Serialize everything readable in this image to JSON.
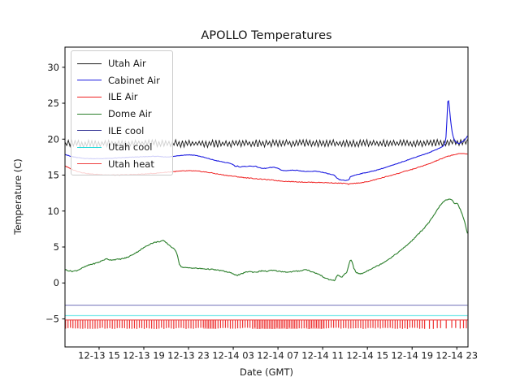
{
  "figure": {
    "title": "APOLLO Temperatures",
    "xlabel": "Date (GMT)",
    "ylabel": "Temperature (C)"
  },
  "chart_data": {
    "type": "line",
    "title": "APOLLO Temperatures",
    "xlabel": "Date (GMT)",
    "ylabel": "Temperature (C)",
    "x_unit": "hours since 12-13 00:00 GMT",
    "xlim": [
      11.95,
      48.0
    ],
    "ylim": [
      -8.9,
      32.8
    ],
    "grid": false,
    "legend_position": "upper left",
    "x_ticks": [
      {
        "t": 15,
        "label": "12-13 15"
      },
      {
        "t": 19,
        "label": "12-13 19"
      },
      {
        "t": 23,
        "label": "12-13 23"
      },
      {
        "t": 27,
        "label": "12-14 03"
      },
      {
        "t": 31,
        "label": "12-14 07"
      },
      {
        "t": 35,
        "label": "12-14 11"
      },
      {
        "t": 39,
        "label": "12-14 15"
      },
      {
        "t": 43,
        "label": "12-14 19"
      },
      {
        "t": 47,
        "label": "12-14 23"
      }
    ],
    "y_ticks": [
      {
        "v": 30,
        "label": "30"
      },
      {
        "v": 25,
        "label": "25"
      },
      {
        "v": 20,
        "label": "20"
      },
      {
        "v": 15,
        "label": "15"
      },
      {
        "v": 10,
        "label": "10"
      },
      {
        "v": 5,
        "label": "5"
      },
      {
        "v": 0,
        "label": "0"
      },
      {
        "v": -5,
        "label": "−5"
      }
    ],
    "legend": [
      {
        "label": "Utah Air",
        "color": "#1a1a1a"
      },
      {
        "label": "Cabinet Air",
        "color": "#1b1be0"
      },
      {
        "label": "ILE Air",
        "color": "#ef2020"
      },
      {
        "label": "Dome Air",
        "color": "#2a7e2a"
      },
      {
        "label": "ILE cool",
        "color": "#3d3d99"
      },
      {
        "label": "Utah cool",
        "color": "#25dcdc"
      },
      {
        "label": "Utah heat",
        "color": "#ef4040"
      }
    ],
    "series": [
      {
        "name": "Utah Air",
        "style": "sawtooth",
        "color": "#1a1a1a",
        "width": 0.9,
        "osc_amp": 0.36,
        "osc_period": 0.3,
        "base": [
          [
            11.95,
            19.35
          ],
          [
            16,
            19.4
          ],
          [
            20,
            19.45
          ],
          [
            24,
            19.35
          ],
          [
            28,
            19.4
          ],
          [
            32,
            19.45
          ],
          [
            36,
            19.4
          ],
          [
            40,
            19.45
          ],
          [
            44,
            19.4
          ],
          [
            46,
            19.5
          ],
          [
            47.5,
            19.6
          ],
          [
            48,
            19.75
          ]
        ]
      },
      {
        "name": "Cabinet Air",
        "style": "line",
        "color": "#1b1be0",
        "width": 1.1,
        "jitter": 0.035,
        "points": [
          [
            11.95,
            17.9
          ],
          [
            12.4,
            17.62
          ],
          [
            13,
            17.45
          ],
          [
            13.5,
            17.35
          ],
          [
            14,
            17.3
          ],
          [
            15,
            17.28
          ],
          [
            16,
            17.33
          ],
          [
            17,
            17.42
          ],
          [
            18,
            17.5
          ],
          [
            19,
            17.55
          ],
          [
            20,
            17.62
          ],
          [
            20.6,
            17.55
          ],
          [
            21,
            17.52
          ],
          [
            21.6,
            17.58
          ],
          [
            22,
            17.68
          ],
          [
            22.5,
            17.78
          ],
          [
            23,
            17.82
          ],
          [
            23.5,
            17.78
          ],
          [
            24,
            17.62
          ],
          [
            24.5,
            17.42
          ],
          [
            25,
            17.2
          ],
          [
            25.5,
            17.0
          ],
          [
            26,
            16.85
          ],
          [
            26.4,
            16.72
          ],
          [
            26.8,
            16.6
          ],
          [
            27,
            16.45
          ],
          [
            27.2,
            16.2
          ],
          [
            27.4,
            16.28
          ],
          [
            27.6,
            16.1
          ],
          [
            27.8,
            16.18
          ],
          [
            28.2,
            16.22
          ],
          [
            28.6,
            16.25
          ],
          [
            29,
            16.22
          ],
          [
            29.3,
            16.05
          ],
          [
            29.6,
            15.92
          ],
          [
            30,
            15.95
          ],
          [
            30.3,
            16.05
          ],
          [
            30.7,
            16.08
          ],
          [
            31,
            15.95
          ],
          [
            31.3,
            15.68
          ],
          [
            31.6,
            15.62
          ],
          [
            32,
            15.65
          ],
          [
            32.4,
            15.7
          ],
          [
            32.8,
            15.65
          ],
          [
            33.2,
            15.55
          ],
          [
            33.6,
            15.48
          ],
          [
            34,
            15.5
          ],
          [
            34.4,
            15.55
          ],
          [
            34.8,
            15.45
          ],
          [
            35.2,
            15.3
          ],
          [
            35.6,
            15.15
          ],
          [
            36,
            15.0
          ],
          [
            36.3,
            14.55
          ],
          [
            36.5,
            14.35
          ],
          [
            36.8,
            14.3
          ],
          [
            37.1,
            14.25
          ],
          [
            37.35,
            14.3
          ],
          [
            37.45,
            14.75
          ],
          [
            37.7,
            14.9
          ],
          [
            38,
            15.05
          ],
          [
            38.4,
            15.2
          ],
          [
            38.8,
            15.32
          ],
          [
            39.2,
            15.45
          ],
          [
            39.6,
            15.6
          ],
          [
            40,
            15.78
          ],
          [
            40.5,
            16.0
          ],
          [
            41,
            16.25
          ],
          [
            41.5,
            16.5
          ],
          [
            42,
            16.78
          ],
          [
            42.5,
            17.05
          ],
          [
            43,
            17.32
          ],
          [
            43.5,
            17.6
          ],
          [
            44,
            17.85
          ],
          [
            44.5,
            18.1
          ],
          [
            45,
            18.45
          ],
          [
            45.5,
            18.8
          ],
          [
            45.8,
            19.05
          ],
          [
            46.0,
            19.6
          ],
          [
            46.08,
            21.5
          ],
          [
            46.18,
            25.0
          ],
          [
            46.22,
            25.8
          ],
          [
            46.3,
            25.0
          ],
          [
            46.45,
            22.5
          ],
          [
            46.6,
            20.8
          ],
          [
            46.75,
            20.0
          ],
          [
            46.9,
            19.6
          ],
          [
            47.1,
            19.42
          ],
          [
            47.3,
            19.45
          ],
          [
            47.5,
            19.65
          ],
          [
            47.75,
            19.95
          ],
          [
            48,
            20.55
          ]
        ]
      },
      {
        "name": "ILE Air",
        "style": "line",
        "color": "#ef2020",
        "width": 1.0,
        "jitter": 0.05,
        "points": [
          [
            11.95,
            16.3
          ],
          [
            12.4,
            15.9
          ],
          [
            13,
            15.55
          ],
          [
            13.5,
            15.35
          ],
          [
            14,
            15.2
          ],
          [
            14.5,
            15.12
          ],
          [
            15,
            15.08
          ],
          [
            16,
            15.02
          ],
          [
            17,
            15.02
          ],
          [
            18,
            15.08
          ],
          [
            19,
            15.15
          ],
          [
            20,
            15.25
          ],
          [
            21,
            15.4
          ],
          [
            22,
            15.52
          ],
          [
            22.6,
            15.58
          ],
          [
            23.2,
            15.6
          ],
          [
            23.8,
            15.55
          ],
          [
            24.4,
            15.45
          ],
          [
            25,
            15.32
          ],
          [
            25.6,
            15.15
          ],
          [
            26.2,
            15.0
          ],
          [
            26.8,
            14.88
          ],
          [
            27.4,
            14.76
          ],
          [
            28,
            14.65
          ],
          [
            28.6,
            14.56
          ],
          [
            29.2,
            14.48
          ],
          [
            29.8,
            14.4
          ],
          [
            30.4,
            14.32
          ],
          [
            31,
            14.22
          ],
          [
            31.6,
            14.14
          ],
          [
            32.2,
            14.1
          ],
          [
            32.8,
            14.06
          ],
          [
            33.4,
            14.02
          ],
          [
            34,
            14.0
          ],
          [
            34.6,
            13.98
          ],
          [
            35.2,
            13.95
          ],
          [
            35.8,
            13.92
          ],
          [
            36.4,
            13.88
          ],
          [
            37,
            13.85
          ],
          [
            37.3,
            13.72
          ],
          [
            37.6,
            13.82
          ],
          [
            38,
            13.88
          ],
          [
            38.5,
            13.95
          ],
          [
            39,
            14.08
          ],
          [
            39.5,
            14.28
          ],
          [
            40,
            14.5
          ],
          [
            40.5,
            14.7
          ],
          [
            41,
            14.92
          ],
          [
            41.5,
            15.12
          ],
          [
            42,
            15.35
          ],
          [
            42.5,
            15.58
          ],
          [
            43,
            15.8
          ],
          [
            43.5,
            16.05
          ],
          [
            44,
            16.3
          ],
          [
            44.5,
            16.55
          ],
          [
            45,
            16.88
          ],
          [
            45.5,
            17.2
          ],
          [
            46,
            17.5
          ],
          [
            46.5,
            17.75
          ],
          [
            47,
            17.92
          ],
          [
            47.4,
            18.0
          ],
          [
            47.7,
            18.0
          ],
          [
            48,
            17.92
          ]
        ]
      },
      {
        "name": "Dome Air",
        "style": "line",
        "color": "#2a7e2a",
        "width": 1.1,
        "jitter": 0.07,
        "points": [
          [
            11.95,
            1.85
          ],
          [
            12.3,
            1.7
          ],
          [
            12.6,
            1.62
          ],
          [
            13,
            1.72
          ],
          [
            13.4,
            2.0
          ],
          [
            13.8,
            2.3
          ],
          [
            14.2,
            2.55
          ],
          [
            14.6,
            2.7
          ],
          [
            15,
            2.9
          ],
          [
            15.4,
            3.2
          ],
          [
            15.7,
            3.35
          ],
          [
            16,
            3.2
          ],
          [
            16.4,
            3.25
          ],
          [
            16.8,
            3.3
          ],
          [
            17.2,
            3.4
          ],
          [
            17.6,
            3.6
          ],
          [
            18,
            3.95
          ],
          [
            18.4,
            4.3
          ],
          [
            18.8,
            4.7
          ],
          [
            19.2,
            5.1
          ],
          [
            19.6,
            5.45
          ],
          [
            20,
            5.65
          ],
          [
            20.4,
            5.75
          ],
          [
            20.7,
            5.9
          ],
          [
            21,
            5.6
          ],
          [
            21.4,
            5.1
          ],
          [
            21.7,
            4.7
          ],
          [
            21.9,
            4.4
          ],
          [
            22.05,
            3.6
          ],
          [
            22.2,
            2.5
          ],
          [
            22.4,
            2.2
          ],
          [
            22.8,
            2.1
          ],
          [
            23.2,
            2.1
          ],
          [
            23.6,
            2.05
          ],
          [
            24,
            2.0
          ],
          [
            24.5,
            1.95
          ],
          [
            25,
            1.9
          ],
          [
            25.5,
            1.8
          ],
          [
            26,
            1.7
          ],
          [
            26.5,
            1.5
          ],
          [
            27,
            1.3
          ],
          [
            27.3,
            1.05
          ],
          [
            27.6,
            1.15
          ],
          [
            28,
            1.45
          ],
          [
            28.4,
            1.6
          ],
          [
            28.8,
            1.5
          ],
          [
            29.2,
            1.55
          ],
          [
            29.6,
            1.7
          ],
          [
            30,
            1.6
          ],
          [
            30.4,
            1.75
          ],
          [
            30.8,
            1.7
          ],
          [
            31.2,
            1.6
          ],
          [
            31.6,
            1.55
          ],
          [
            32,
            1.5
          ],
          [
            32.4,
            1.6
          ],
          [
            32.8,
            1.65
          ],
          [
            33.2,
            1.75
          ],
          [
            33.5,
            1.9
          ],
          [
            33.8,
            1.7
          ],
          [
            34.2,
            1.45
          ],
          [
            34.6,
            1.25
          ],
          [
            35,
            0.9
          ],
          [
            35.4,
            0.55
          ],
          [
            35.8,
            0.4
          ],
          [
            36.1,
            0.35
          ],
          [
            36.3,
            1.1
          ],
          [
            36.5,
            0.95
          ],
          [
            36.7,
            0.8
          ],
          [
            37,
            1.25
          ],
          [
            37.15,
            1.4
          ],
          [
            37.35,
            2.6
          ],
          [
            37.5,
            3.3
          ],
          [
            37.65,
            2.9
          ],
          [
            37.8,
            2.0
          ],
          [
            38,
            1.45
          ],
          [
            38.3,
            1.25
          ],
          [
            38.6,
            1.35
          ],
          [
            39,
            1.7
          ],
          [
            39.5,
            2.1
          ],
          [
            40,
            2.45
          ],
          [
            40.5,
            2.9
          ],
          [
            41,
            3.4
          ],
          [
            41.5,
            3.95
          ],
          [
            42,
            4.55
          ],
          [
            42.5,
            5.2
          ],
          [
            43,
            5.9
          ],
          [
            43.5,
            6.7
          ],
          [
            44,
            7.5
          ],
          [
            44.5,
            8.4
          ],
          [
            45,
            9.5
          ],
          [
            45.3,
            10.3
          ],
          [
            45.6,
            11.0
          ],
          [
            46,
            11.5
          ],
          [
            46.3,
            11.65
          ],
          [
            46.6,
            11.5
          ],
          [
            46.8,
            11.05
          ],
          [
            47,
            11.15
          ],
          [
            47.2,
            10.6
          ],
          [
            47.4,
            9.9
          ],
          [
            47.6,
            9.0
          ],
          [
            47.8,
            7.9
          ],
          [
            48,
            6.5
          ]
        ]
      },
      {
        "name": "ILE cool",
        "style": "line",
        "color": "#7070b8",
        "width": 1.0,
        "jitter": 0,
        "points": [
          [
            11.95,
            -3.1
          ],
          [
            48,
            -3.1
          ]
        ]
      },
      {
        "name": "Utah cool",
        "style": "line",
        "color": "#72e8e8",
        "width": 1.3,
        "jitter": 0,
        "points": [
          [
            11.95,
            -4.55
          ],
          [
            48,
            -4.55
          ]
        ]
      },
      {
        "name": "Utah heat",
        "style": "comb",
        "color": "#ee3333",
        "width": 1.2,
        "baseline": -5.15,
        "tick_low": -6.4,
        "dense_start": 12,
        "dense_end": 44.2,
        "spacing": 0.22,
        "sparse_ticks": [
          44.55,
          44.9,
          45.25,
          45.55,
          46.05,
          46.55,
          46.9,
          47.3,
          47.6,
          47.85
        ],
        "blocks": [
          [
            24.3,
            25.5
          ],
          [
            28.8,
            32.8
          ],
          [
            33.5,
            35.2
          ]
        ]
      }
    ]
  }
}
